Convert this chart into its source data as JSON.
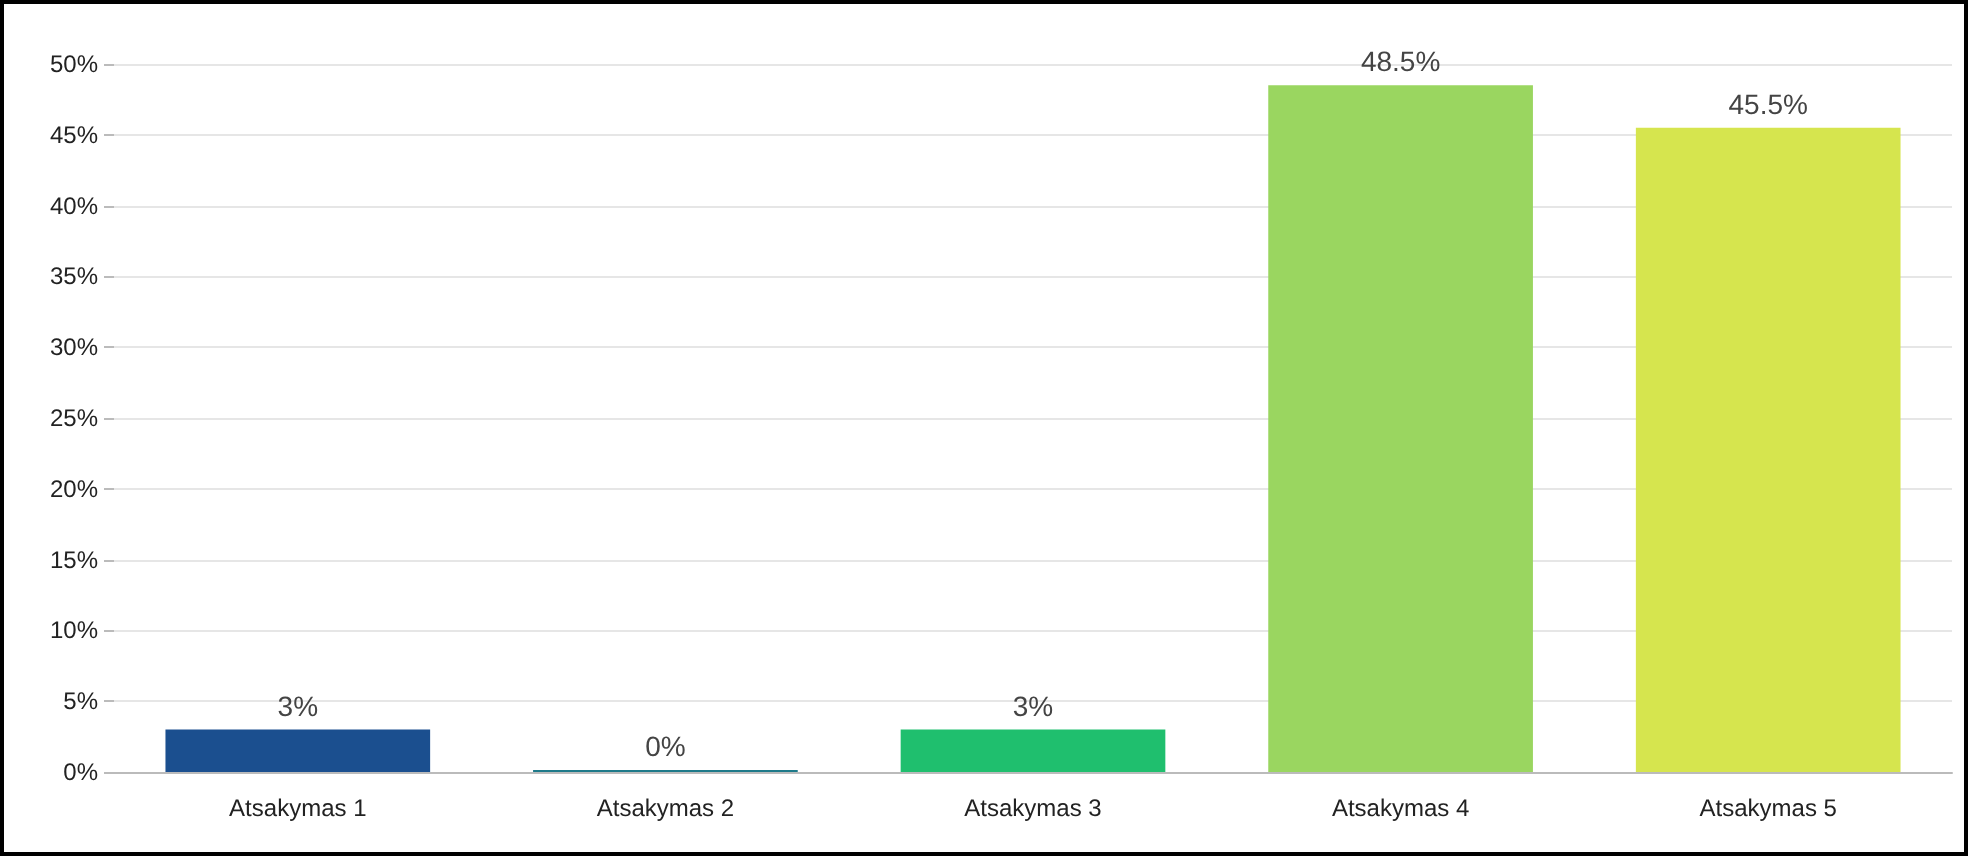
{
  "chart_data": {
    "type": "bar",
    "categories": [
      "Atsakymas 1",
      "Atsakymas 2",
      "Atsakymas 3",
      "Atsakymas 4",
      "Atsakymas 5"
    ],
    "values": [
      3,
      0,
      3,
      48.5,
      45.5
    ],
    "colors": [
      "#1b4f8f",
      "#1e7a8a",
      "#1fbf6e",
      "#9ad660",
      "#d6e54e"
    ],
    "value_labels": [
      "3%",
      "0%",
      "3%",
      "48.5%",
      "45.5%"
    ],
    "ylim": [
      0,
      50
    ],
    "yticks": [
      {
        "value": 0,
        "label": "0%"
      },
      {
        "value": 5,
        "label": "5%"
      },
      {
        "value": 10,
        "label": "10%"
      },
      {
        "value": 15,
        "label": "15%"
      },
      {
        "value": 20,
        "label": "20%"
      },
      {
        "value": 25,
        "label": "25%"
      },
      {
        "value": 30,
        "label": "30%"
      },
      {
        "value": 35,
        "label": "35%"
      },
      {
        "value": 40,
        "label": "40%"
      },
      {
        "value": 45,
        "label": "45%"
      },
      {
        "value": 50,
        "label": "50%"
      }
    ],
    "grid": "y"
  }
}
